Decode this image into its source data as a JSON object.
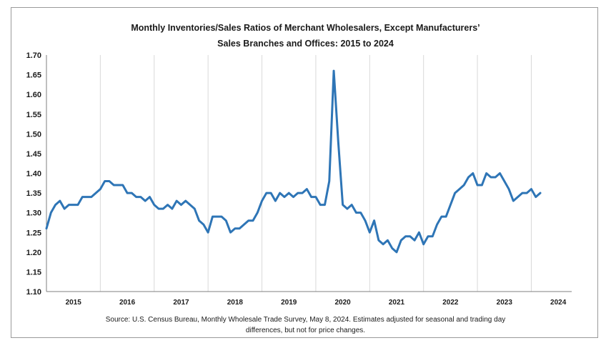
{
  "chart_data": {
    "type": "line",
    "title": "Monthly Inventories/Sales Ratios of Merchant Wholesalers, Except Manufacturers' Sales Branches and Offices: 2015 to 2024",
    "title_lines": [
      "Monthly Inventories/Sales Ratios of Merchant Wholesalers, Except Manufacturers’",
      "Sales Branches and Offices: 2015 to 2024"
    ],
    "xlabel": "",
    "ylabel": "",
    "ylim": [
      1.1,
      1.7
    ],
    "y_ticks": [
      "1.70",
      "1.65",
      "1.60",
      "1.55",
      "1.50",
      "1.45",
      "1.40",
      "1.35",
      "1.30",
      "1.25",
      "1.20",
      "1.15",
      "1.10"
    ],
    "x_categories": [
      "2015",
      "2016",
      "2017",
      "2018",
      "2019",
      "2020",
      "2021",
      "2022",
      "2023",
      "2024"
    ],
    "grid": "vertical year separators",
    "series": [
      {
        "name": "Inventories/Sales Ratio",
        "color": "#2e75b6",
        "start": "2015-01",
        "values": [
          1.26,
          1.3,
          1.32,
          1.33,
          1.31,
          1.32,
          1.32,
          1.32,
          1.34,
          1.34,
          1.34,
          1.35,
          1.36,
          1.38,
          1.38,
          1.37,
          1.37,
          1.37,
          1.35,
          1.35,
          1.34,
          1.34,
          1.33,
          1.34,
          1.32,
          1.31,
          1.31,
          1.32,
          1.31,
          1.33,
          1.32,
          1.33,
          1.32,
          1.31,
          1.28,
          1.27,
          1.25,
          1.29,
          1.29,
          1.29,
          1.28,
          1.25,
          1.26,
          1.26,
          1.27,
          1.28,
          1.28,
          1.3,
          1.33,
          1.35,
          1.35,
          1.33,
          1.35,
          1.34,
          1.35,
          1.34,
          1.35,
          1.35,
          1.36,
          1.34,
          1.34,
          1.32,
          1.32,
          1.38,
          1.66,
          1.48,
          1.32,
          1.31,
          1.32,
          1.3,
          1.3,
          1.28,
          1.25,
          1.28,
          1.23,
          1.22,
          1.23,
          1.21,
          1.2,
          1.23,
          1.24,
          1.24,
          1.23,
          1.25,
          1.22,
          1.24,
          1.24,
          1.27,
          1.29,
          1.29,
          1.32,
          1.35,
          1.36,
          1.37,
          1.39,
          1.4,
          1.37,
          1.37,
          1.4,
          1.39,
          1.39,
          1.4,
          1.38,
          1.36,
          1.33,
          1.34,
          1.35,
          1.35,
          1.36,
          1.34,
          1.35
        ]
      }
    ],
    "source_lines": [
      "Source: U.S. Census Bureau, Monthly Wholesale Trade Survey, May 8, 2024. Estimates adjusted for seasonal and trading day",
      "differences, but not for price changes."
    ]
  }
}
